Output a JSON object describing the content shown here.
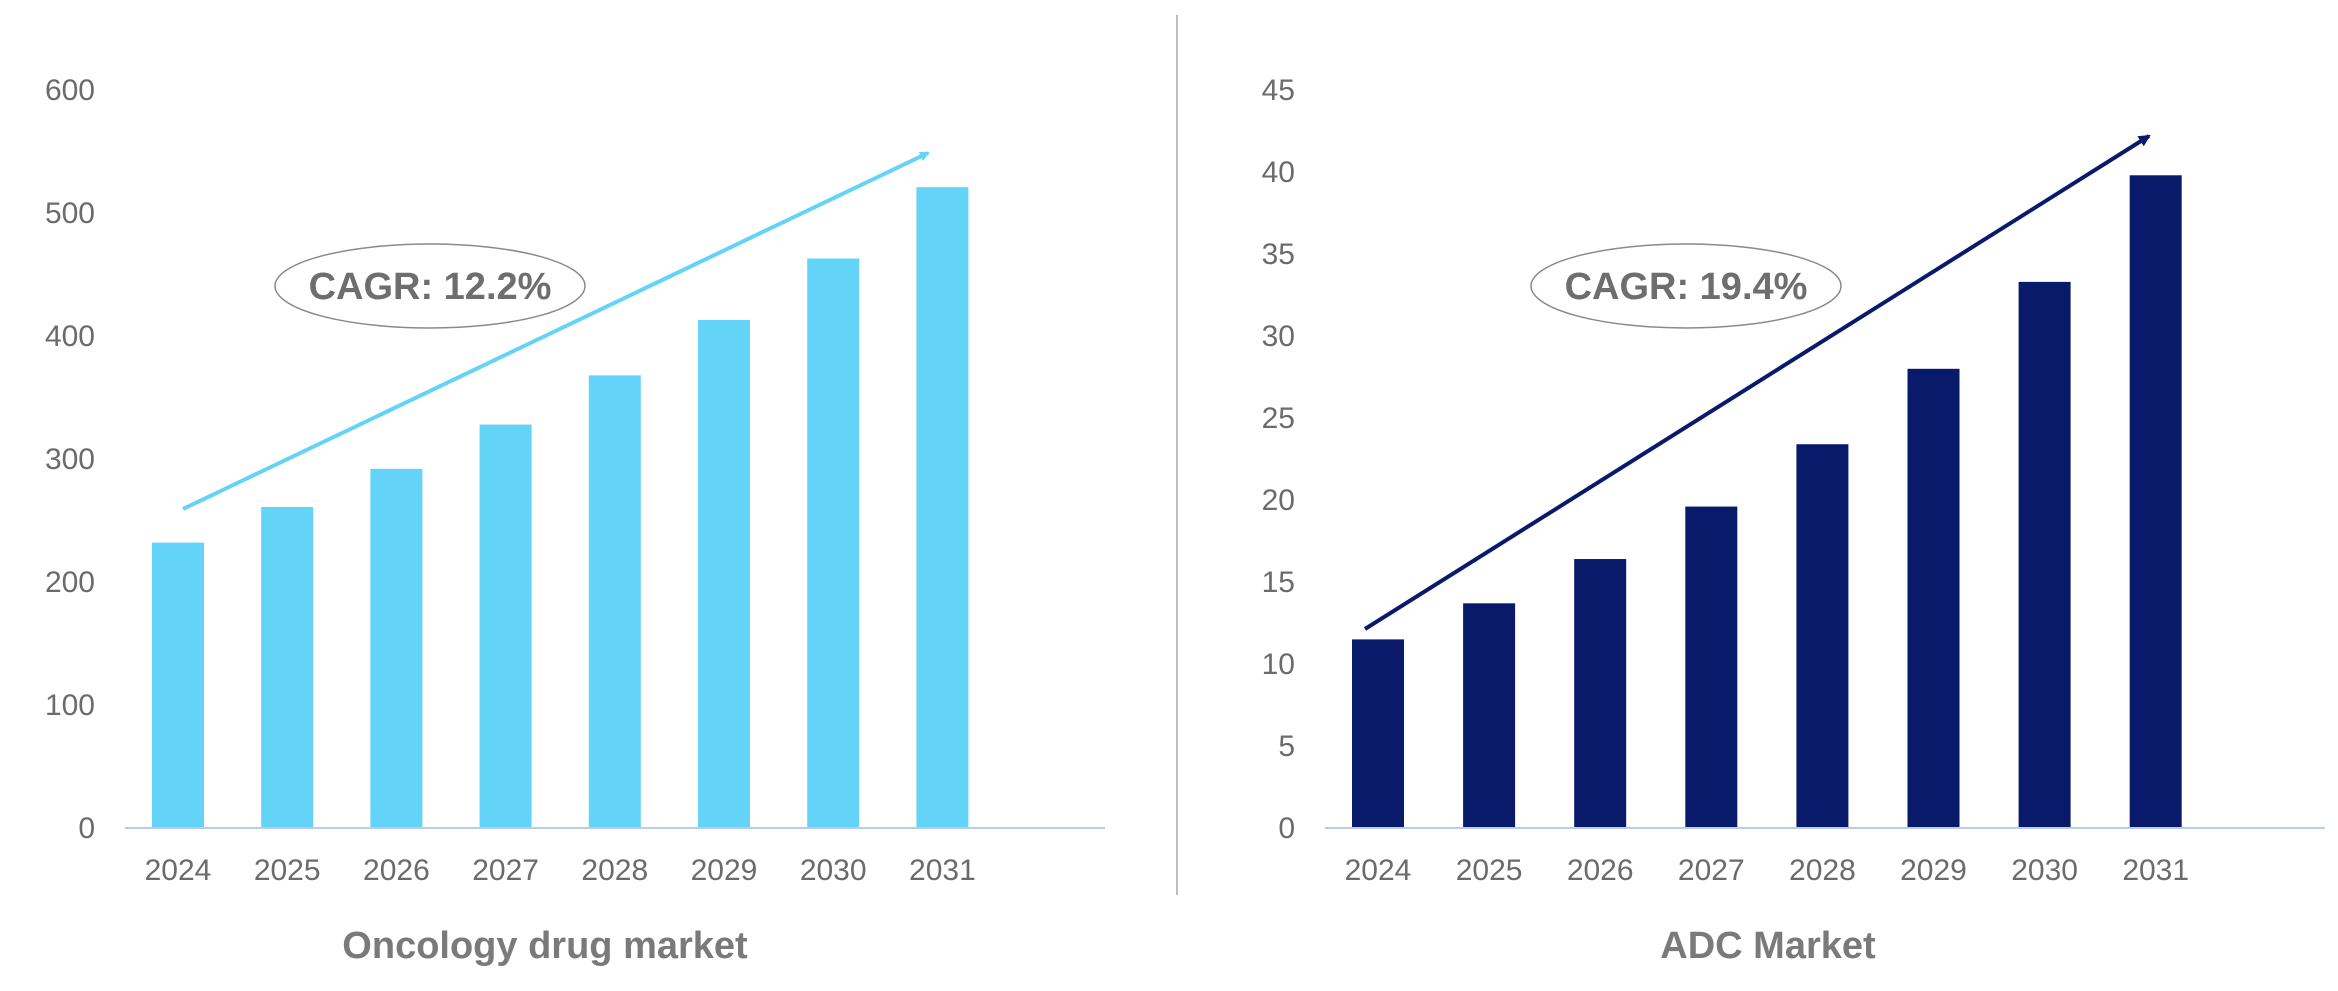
{
  "chart_data": [
    {
      "type": "bar",
      "title": "Oncology drug market",
      "categories": [
        "2024",
        "2025",
        "2026",
        "2027",
        "2028",
        "2029",
        "2030",
        "2031"
      ],
      "values": [
        232,
        261,
        292,
        328,
        368,
        413,
        463,
        521
      ],
      "ylim": [
        0,
        600
      ],
      "yticks": [
        "0",
        "100",
        "200",
        "300",
        "400",
        "500",
        "600"
      ],
      "xlabel": "",
      "ylabel": "",
      "bar_color": "#63D3F7",
      "annotation": "CAGR: 12.2%",
      "grid": false
    },
    {
      "type": "bar",
      "title": "ADC Market",
      "categories": [
        "2024",
        "2025",
        "2026",
        "2027",
        "2028",
        "2029",
        "2030",
        "2031"
      ],
      "values": [
        11.5,
        13.7,
        16.4,
        19.6,
        23.4,
        28.0,
        33.3,
        39.8
      ],
      "ylim": [
        0,
        45
      ],
      "yticks": [
        "0",
        "5",
        "10",
        "15",
        "20",
        "25",
        "30",
        "35",
        "40",
        "45"
      ],
      "xlabel": "",
      "ylabel": "",
      "bar_color": "#0A1A6B",
      "annotation": "CAGR: 19.4%",
      "grid": false
    }
  ]
}
